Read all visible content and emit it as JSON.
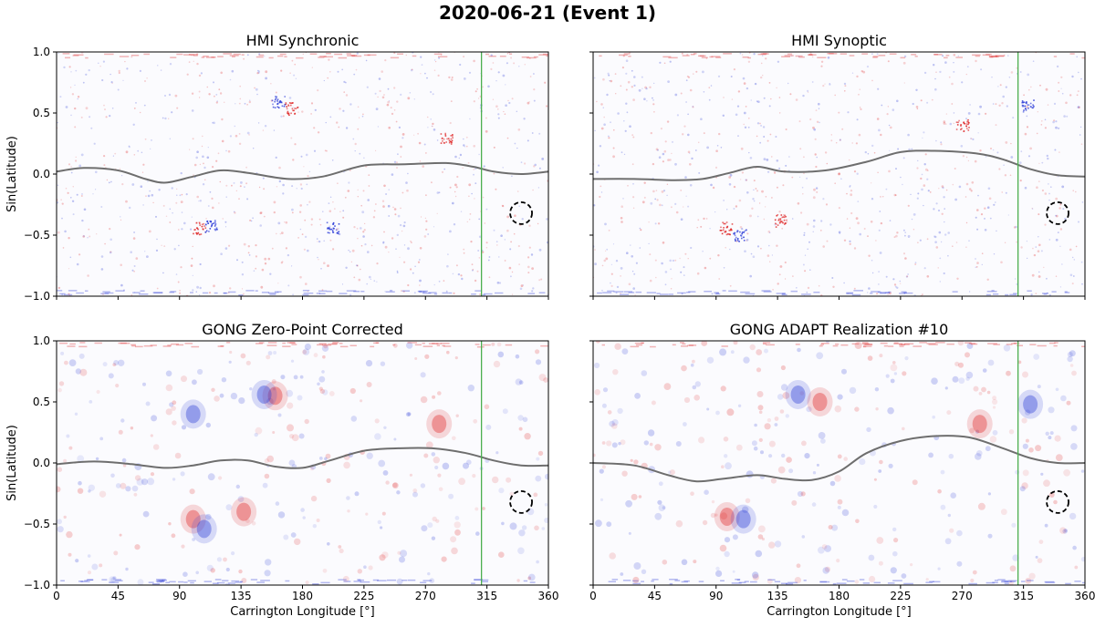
{
  "figure": {
    "title": "2020-06-21 (Event 1)"
  },
  "colors": {
    "neutral_line": "#6e6e6e",
    "vertical_marker": "#4caf50",
    "positive_polarity": "#e03030",
    "negative_polarity": "#3040d8",
    "circle": "#000000"
  },
  "chart_data": [
    {
      "type": "line",
      "title": "HMI Synchronic",
      "xlabel": "",
      "ylabel": "Sin(Latitude)",
      "xlim": [
        0,
        360
      ],
      "ylim": [
        -1.0,
        1.0
      ],
      "xticks": [
        0,
        45,
        90,
        135,
        180,
        225,
        270,
        315,
        360
      ],
      "yticks": [
        1.0,
        0.5,
        0.0,
        -0.5,
        -1.0
      ],
      "ytick_labels": [
        "1.0",
        "0.5",
        "0.0",
        "−0.5",
        "−1.0"
      ],
      "vertical_line_x": 311,
      "circle_center": [
        340,
        -0.32
      ],
      "neutral_line": {
        "x": [
          0,
          20,
          45,
          65,
          80,
          100,
          120,
          140,
          170,
          195,
          225,
          255,
          285,
          305,
          320,
          340,
          360
        ],
        "y": [
          0.02,
          0.05,
          0.03,
          -0.04,
          -0.07,
          -0.02,
          0.03,
          0.01,
          -0.04,
          -0.02,
          0.07,
          0.08,
          0.09,
          0.06,
          0.02,
          0.0,
          0.02
        ]
      },
      "active_regions": [
        {
          "x": 162,
          "y": 0.6,
          "polarity": "negative"
        },
        {
          "x": 172,
          "y": 0.54,
          "polarity": "positive"
        },
        {
          "x": 104,
          "y": -0.44,
          "polarity": "positive"
        },
        {
          "x": 113,
          "y": -0.42,
          "polarity": "negative"
        },
        {
          "x": 202,
          "y": -0.43,
          "polarity": "negative"
        },
        {
          "x": 285,
          "y": 0.3,
          "polarity": "positive"
        }
      ]
    },
    {
      "type": "line",
      "title": "HMI Synoptic",
      "xlabel": "",
      "ylabel": "",
      "xlim": [
        0,
        360
      ],
      "ylim": [
        -1.0,
        1.0
      ],
      "xticks": [
        0,
        45,
        90,
        135,
        180,
        225,
        270,
        315,
        360
      ],
      "yticks": [
        1.0,
        0.5,
        0.0,
        -0.5,
        -1.0
      ],
      "vertical_line_x": 311,
      "circle_center": [
        340,
        -0.32
      ],
      "neutral_line": {
        "x": [
          0,
          30,
          60,
          80,
          100,
          120,
          140,
          170,
          200,
          225,
          250,
          280,
          300,
          320,
          340,
          360
        ],
        "y": [
          -0.04,
          -0.04,
          -0.05,
          -0.04,
          0.01,
          0.06,
          0.02,
          0.03,
          0.1,
          0.18,
          0.19,
          0.17,
          0.12,
          0.04,
          -0.01,
          -0.02
        ]
      },
      "active_regions": [
        {
          "x": 97,
          "y": -0.44,
          "polarity": "positive"
        },
        {
          "x": 107,
          "y": -0.5,
          "polarity": "negative"
        },
        {
          "x": 137,
          "y": -0.38,
          "polarity": "positive"
        },
        {
          "x": 270,
          "y": 0.4,
          "polarity": "positive"
        },
        {
          "x": 318,
          "y": 0.56,
          "polarity": "negative"
        }
      ]
    },
    {
      "type": "line",
      "title": "GONG Zero-Point Corrected",
      "xlabel": "Carrington Longitude [°]",
      "ylabel": "Sin(Latitude)",
      "xlim": [
        0,
        360
      ],
      "ylim": [
        -1.0,
        1.0
      ],
      "xticks": [
        0,
        45,
        90,
        135,
        180,
        225,
        270,
        315,
        360
      ],
      "yticks": [
        1.0,
        0.5,
        0.0,
        -0.5,
        -1.0
      ],
      "ytick_labels": [
        "1.0",
        "0.5",
        "0.0",
        "−0.5",
        "−1.0"
      ],
      "vertical_line_x": 311,
      "circle_center": [
        340,
        -0.32
      ],
      "neutral_line": {
        "x": [
          0,
          20,
          35,
          55,
          80,
          100,
          120,
          140,
          160,
          180,
          200,
          225,
          250,
          275,
          300,
          320,
          340,
          360
        ],
        "y": [
          -0.01,
          0.01,
          0.01,
          -0.01,
          -0.04,
          -0.02,
          0.02,
          0.02,
          -0.03,
          -0.04,
          0.02,
          0.1,
          0.12,
          0.12,
          0.08,
          0.02,
          -0.02,
          -0.02
        ]
      },
      "active_regions": [
        {
          "x": 100,
          "y": -0.46,
          "polarity": "positive"
        },
        {
          "x": 108,
          "y": -0.54,
          "polarity": "negative"
        },
        {
          "x": 137,
          "y": -0.4,
          "polarity": "positive"
        },
        {
          "x": 160,
          "y": 0.55,
          "polarity": "positive"
        },
        {
          "x": 152,
          "y": 0.56,
          "polarity": "negative"
        },
        {
          "x": 100,
          "y": 0.4,
          "polarity": "negative"
        },
        {
          "x": 280,
          "y": 0.32,
          "polarity": "positive"
        }
      ]
    },
    {
      "type": "line",
      "title": "GONG ADAPT Realization #10",
      "xlabel": "Carrington Longitude [°]",
      "ylabel": "",
      "xlim": [
        0,
        360
      ],
      "ylim": [
        -1.0,
        1.0
      ],
      "xticks": [
        0,
        45,
        90,
        135,
        180,
        225,
        270,
        315,
        360
      ],
      "yticks": [
        1.0,
        0.5,
        0.0,
        -0.5,
        -1.0
      ],
      "vertical_line_x": 311,
      "circle_center": [
        340,
        -0.32
      ],
      "neutral_line": {
        "x": [
          0,
          30,
          55,
          75,
          95,
          120,
          140,
          160,
          180,
          200,
          225,
          250,
          275,
          300,
          320,
          340,
          360
        ],
        "y": [
          0.0,
          -0.02,
          -0.1,
          -0.15,
          -0.13,
          -0.1,
          -0.13,
          -0.14,
          -0.07,
          0.08,
          0.18,
          0.22,
          0.21,
          0.12,
          0.04,
          0.0,
          0.0
        ]
      },
      "active_regions": [
        {
          "x": 98,
          "y": -0.44,
          "polarity": "positive"
        },
        {
          "x": 110,
          "y": -0.46,
          "polarity": "negative"
        },
        {
          "x": 150,
          "y": 0.56,
          "polarity": "negative"
        },
        {
          "x": 166,
          "y": 0.5,
          "polarity": "positive"
        },
        {
          "x": 283,
          "y": 0.32,
          "polarity": "positive"
        },
        {
          "x": 320,
          "y": 0.48,
          "polarity": "negative"
        }
      ]
    }
  ]
}
